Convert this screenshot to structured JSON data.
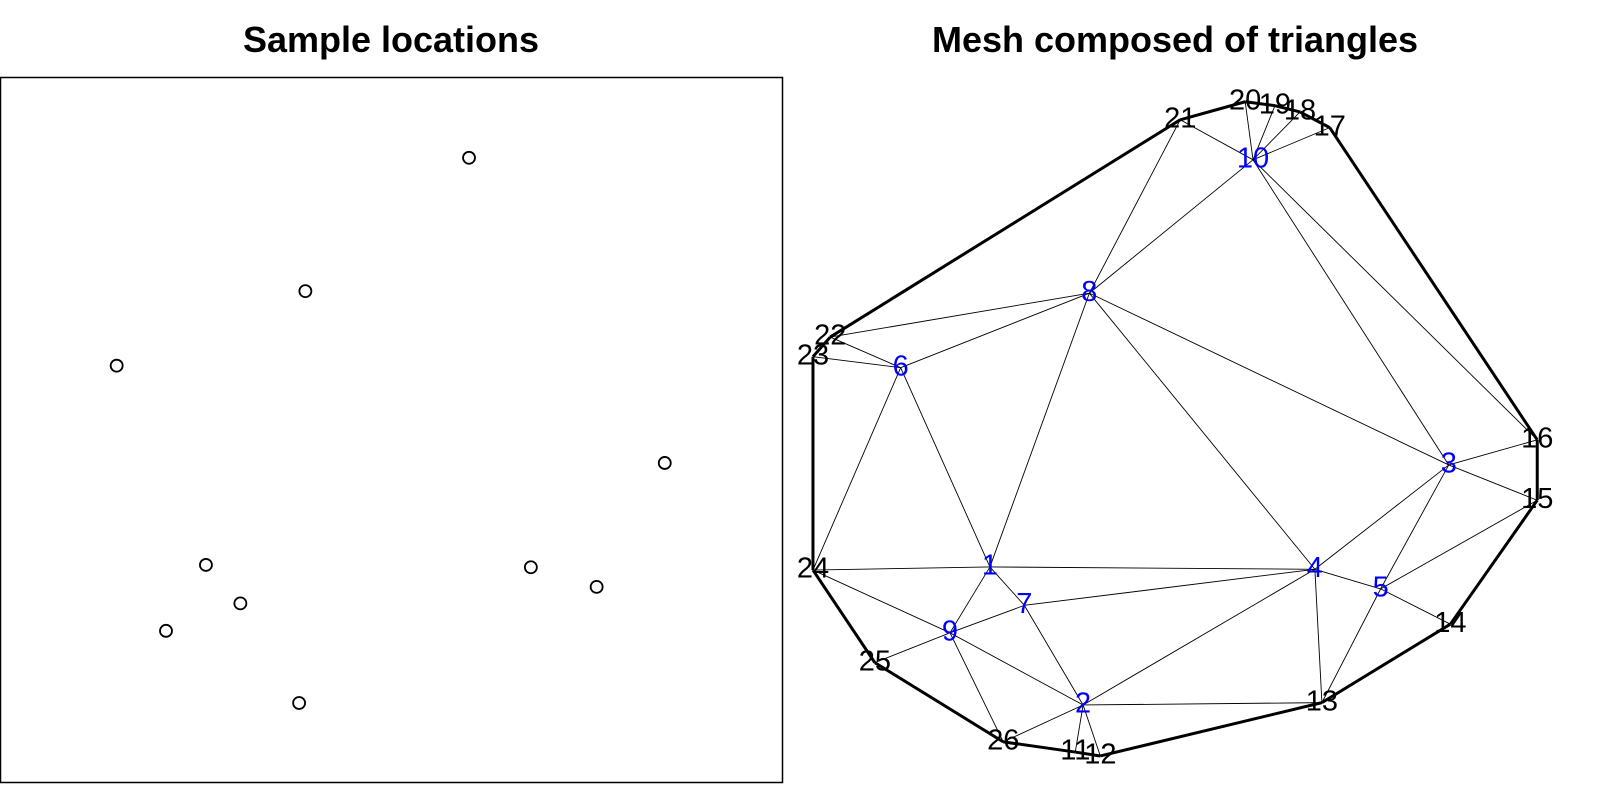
{
  "chart_data": [
    {
      "type": "scatter",
      "title": "Sample locations",
      "x": [
        5.99,
        3.9,
        1.49,
        8.49,
        2.63,
        6.78,
        7.62,
        3.07,
        2.12,
        3.82
      ],
      "y": [
        7.97,
        6.27,
        5.32,
        4.08,
        2.78,
        2.75,
        2.5,
        2.29,
        1.94,
        1.02
      ],
      "xlim": [
        0,
        10
      ],
      "ylim": [
        0,
        9
      ],
      "color": "#000000"
    },
    {
      "type": "mesh",
      "title": "Mesh composed of triangles",
      "xlim": [
        0,
        10
      ],
      "ylim": [
        0,
        9
      ],
      "nodes": [
        {
          "label": "1",
          "x": 2.63,
          "y": 2.78,
          "color": "#0000ff"
        },
        {
          "label": "2",
          "x": 3.82,
          "y": 1.02,
          "color": "#0000ff"
        },
        {
          "label": "3",
          "x": 8.49,
          "y": 4.08,
          "color": "#0000ff"
        },
        {
          "label": "4",
          "x": 6.78,
          "y": 2.75,
          "color": "#0000ff"
        },
        {
          "label": "5",
          "x": 7.62,
          "y": 2.5,
          "color": "#0000ff"
        },
        {
          "label": "6",
          "x": 1.49,
          "y": 5.32,
          "color": "#0000ff"
        },
        {
          "label": "7",
          "x": 3.07,
          "y": 2.29,
          "color": "#0000ff"
        },
        {
          "label": "8",
          "x": 3.9,
          "y": 6.27,
          "color": "#0000ff"
        },
        {
          "label": "9",
          "x": 2.12,
          "y": 1.94,
          "color": "#0000ff"
        },
        {
          "label": "10",
          "x": 5.99,
          "y": 7.97,
          "color": "#0000ff"
        },
        {
          "label": "11",
          "x": 3.72,
          "y": 0.42,
          "color": "#000000"
        },
        {
          "label": "12",
          "x": 4.04,
          "y": 0.37,
          "color": "#000000"
        },
        {
          "label": "13",
          "x": 6.87,
          "y": 1.05,
          "color": "#000000"
        },
        {
          "label": "14",
          "x": 8.51,
          "y": 2.05,
          "color": "#000000"
        },
        {
          "label": "15",
          "x": 9.62,
          "y": 3.63,
          "color": "#000000"
        },
        {
          "label": "16",
          "x": 9.62,
          "y": 4.4,
          "color": "#000000"
        },
        {
          "label": "17",
          "x": 6.97,
          "y": 8.38,
          "color": "#000000"
        },
        {
          "label": "18",
          "x": 6.59,
          "y": 8.58,
          "color": "#000000"
        },
        {
          "label": "19",
          "x": 6.27,
          "y": 8.66,
          "color": "#000000"
        },
        {
          "label": "20",
          "x": 5.89,
          "y": 8.71,
          "color": "#000000"
        },
        {
          "label": "21",
          "x": 5.06,
          "y": 8.48,
          "color": "#000000"
        },
        {
          "label": "22",
          "x": 0.59,
          "y": 5.71,
          "color": "#000000"
        },
        {
          "label": "23",
          "x": 0.37,
          "y": 5.46,
          "color": "#000000"
        },
        {
          "label": "24",
          "x": 0.37,
          "y": 2.74,
          "color": "#000000"
        },
        {
          "label": "25",
          "x": 1.16,
          "y": 1.56,
          "color": "#000000"
        },
        {
          "label": "26",
          "x": 2.8,
          "y": 0.55,
          "color": "#000000"
        }
      ],
      "boundary": [
        "11",
        "12",
        "13",
        "14",
        "15",
        "16",
        "17",
        "18",
        "19",
        "20",
        "21",
        "22",
        "23",
        "24",
        "25",
        "26",
        "11"
      ],
      "edges": [
        [
          "21",
          "8"
        ],
        [
          "21",
          "10"
        ],
        [
          "20",
          "10"
        ],
        [
          "19",
          "10"
        ],
        [
          "18",
          "10"
        ],
        [
          "17",
          "10"
        ],
        [
          "10",
          "8"
        ],
        [
          "10",
          "3"
        ],
        [
          "10",
          "16"
        ],
        [
          "8",
          "22"
        ],
        [
          "8",
          "6"
        ],
        [
          "8",
          "1"
        ],
        [
          "8",
          "4"
        ],
        [
          "8",
          "3"
        ],
        [
          "22",
          "6"
        ],
        [
          "23",
          "6"
        ],
        [
          "6",
          "24"
        ],
        [
          "6",
          "1"
        ],
        [
          "24",
          "1"
        ],
        [
          "1",
          "4"
        ],
        [
          "1",
          "7"
        ],
        [
          "1",
          "9"
        ],
        [
          "24",
          "9"
        ],
        [
          "25",
          "9"
        ],
        [
          "9",
          "7"
        ],
        [
          "9",
          "2"
        ],
        [
          "9",
          "26"
        ],
        [
          "7",
          "4"
        ],
        [
          "7",
          "2"
        ],
        [
          "26",
          "2"
        ],
        [
          "2",
          "11"
        ],
        [
          "2",
          "12"
        ],
        [
          "2",
          "13"
        ],
        [
          "2",
          "4"
        ],
        [
          "4",
          "13"
        ],
        [
          "4",
          "3"
        ],
        [
          "4",
          "5"
        ],
        [
          "5",
          "13"
        ],
        [
          "5",
          "3"
        ],
        [
          "5",
          "15"
        ],
        [
          "5",
          "14"
        ],
        [
          "3",
          "16"
        ],
        [
          "3",
          "15"
        ]
      ]
    }
  ]
}
